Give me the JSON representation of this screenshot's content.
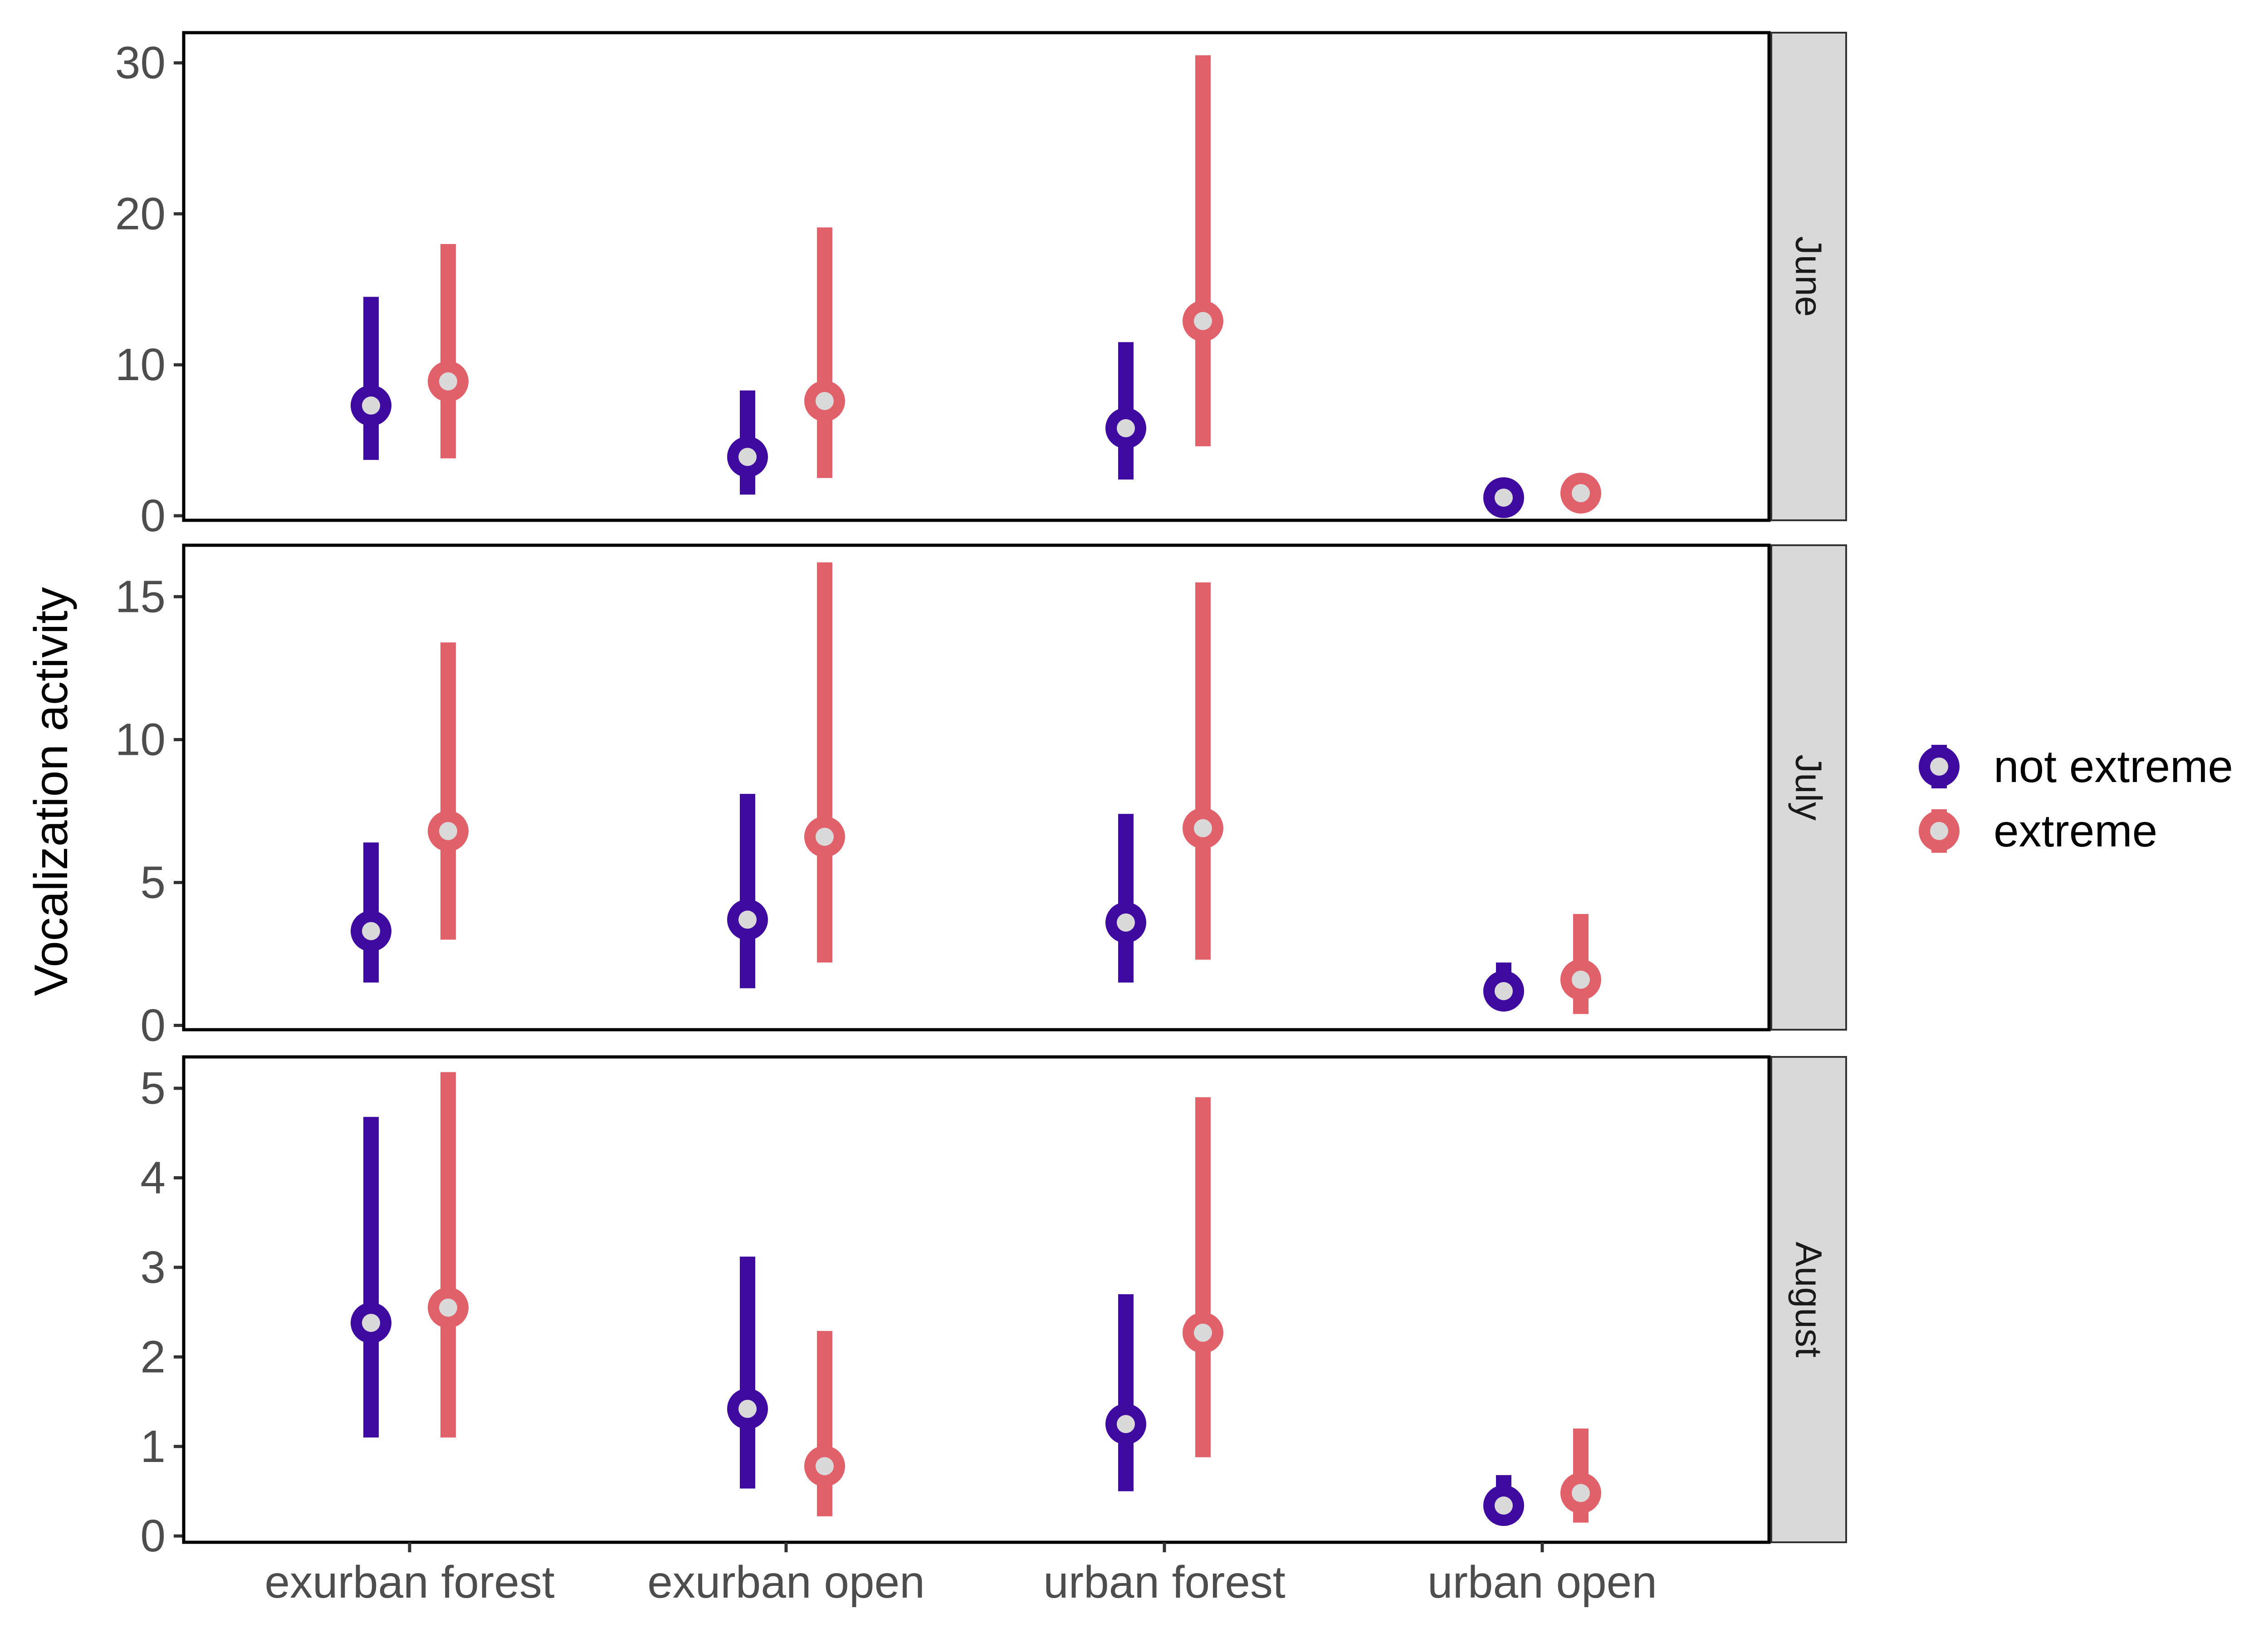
{
  "chart_data": {
    "type": "point-range",
    "ylabel": "Vocalization activity",
    "xlabel": "",
    "categories": [
      "exurban forest",
      "exurban open",
      "urban forest",
      "urban open"
    ],
    "series": [
      {
        "name": "not extreme",
        "color": "#3f0aa0"
      },
      {
        "name": "extreme",
        "color": "#e1616b"
      }
    ],
    "legend_position": "right",
    "facets": [
      {
        "label": "June",
        "ylim": [
          -0.3,
          32.0
        ],
        "yticks": [
          0,
          10,
          20,
          30
        ],
        "data": {
          "not extreme": [
            {
              "category": "exurban forest",
              "estimate": 7.3,
              "lower": 3.7,
              "upper": 14.5
            },
            {
              "category": "exurban open",
              "estimate": 3.9,
              "lower": 1.4,
              "upper": 8.3
            },
            {
              "category": "urban forest",
              "estimate": 5.8,
              "lower": 2.4,
              "upper": 11.5
            },
            {
              "category": "urban open",
              "estimate": 1.2,
              "lower": 0.9,
              "upper": 1.5
            }
          ],
          "extreme": [
            {
              "category": "exurban forest",
              "estimate": 8.9,
              "lower": 3.8,
              "upper": 18.0
            },
            {
              "category": "exurban open",
              "estimate": 7.6,
              "lower": 2.5,
              "upper": 19.1
            },
            {
              "category": "urban forest",
              "estimate": 12.9,
              "lower": 4.6,
              "upper": 30.5
            },
            {
              "category": "urban open",
              "estimate": 1.5,
              "lower": 1.2,
              "upper": 1.8
            }
          ]
        }
      },
      {
        "label": "July",
        "ylim": [
          -0.15,
          16.8
        ],
        "yticks": [
          0,
          5,
          10,
          15
        ],
        "data": {
          "not extreme": [
            {
              "category": "exurban forest",
              "estimate": 3.3,
              "lower": 1.5,
              "upper": 6.4
            },
            {
              "category": "exurban open",
              "estimate": 3.7,
              "lower": 1.3,
              "upper": 8.1
            },
            {
              "category": "urban forest",
              "estimate": 3.6,
              "lower": 1.5,
              "upper": 7.4
            },
            {
              "category": "urban open",
              "estimate": 1.2,
              "lower": 0.8,
              "upper": 2.2
            }
          ],
          "extreme": [
            {
              "category": "exurban forest",
              "estimate": 6.8,
              "lower": 3.0,
              "upper": 13.4
            },
            {
              "category": "exurban open",
              "estimate": 6.6,
              "lower": 2.2,
              "upper": 16.2
            },
            {
              "category": "urban forest",
              "estimate": 6.9,
              "lower": 2.3,
              "upper": 15.5
            },
            {
              "category": "urban open",
              "estimate": 1.6,
              "lower": 0.4,
              "upper": 3.9
            }
          ]
        }
      },
      {
        "label": "August",
        "ylim": [
          -0.07,
          5.35
        ],
        "yticks": [
          0,
          1,
          2,
          3,
          4,
          5
        ],
        "data": {
          "not extreme": [
            {
              "category": "exurban forest",
              "estimate": 2.38,
              "lower": 1.1,
              "upper": 4.68
            },
            {
              "category": "exurban open",
              "estimate": 1.42,
              "lower": 0.53,
              "upper": 3.12
            },
            {
              "category": "urban forest",
              "estimate": 1.25,
              "lower": 0.5,
              "upper": 2.7
            },
            {
              "category": "urban open",
              "estimate": 0.34,
              "lower": 0.2,
              "upper": 0.68
            }
          ],
          "extreme": [
            {
              "category": "exurban forest",
              "estimate": 2.55,
              "lower": 1.1,
              "upper": 5.18
            },
            {
              "category": "exurban open",
              "estimate": 0.78,
              "lower": 0.22,
              "upper": 2.29
            },
            {
              "category": "urban forest",
              "estimate": 2.27,
              "lower": 0.88,
              "upper": 4.9
            },
            {
              "category": "urban open",
              "estimate": 0.48,
              "lower": 0.15,
              "upper": 1.2
            }
          ]
        }
      }
    ]
  }
}
